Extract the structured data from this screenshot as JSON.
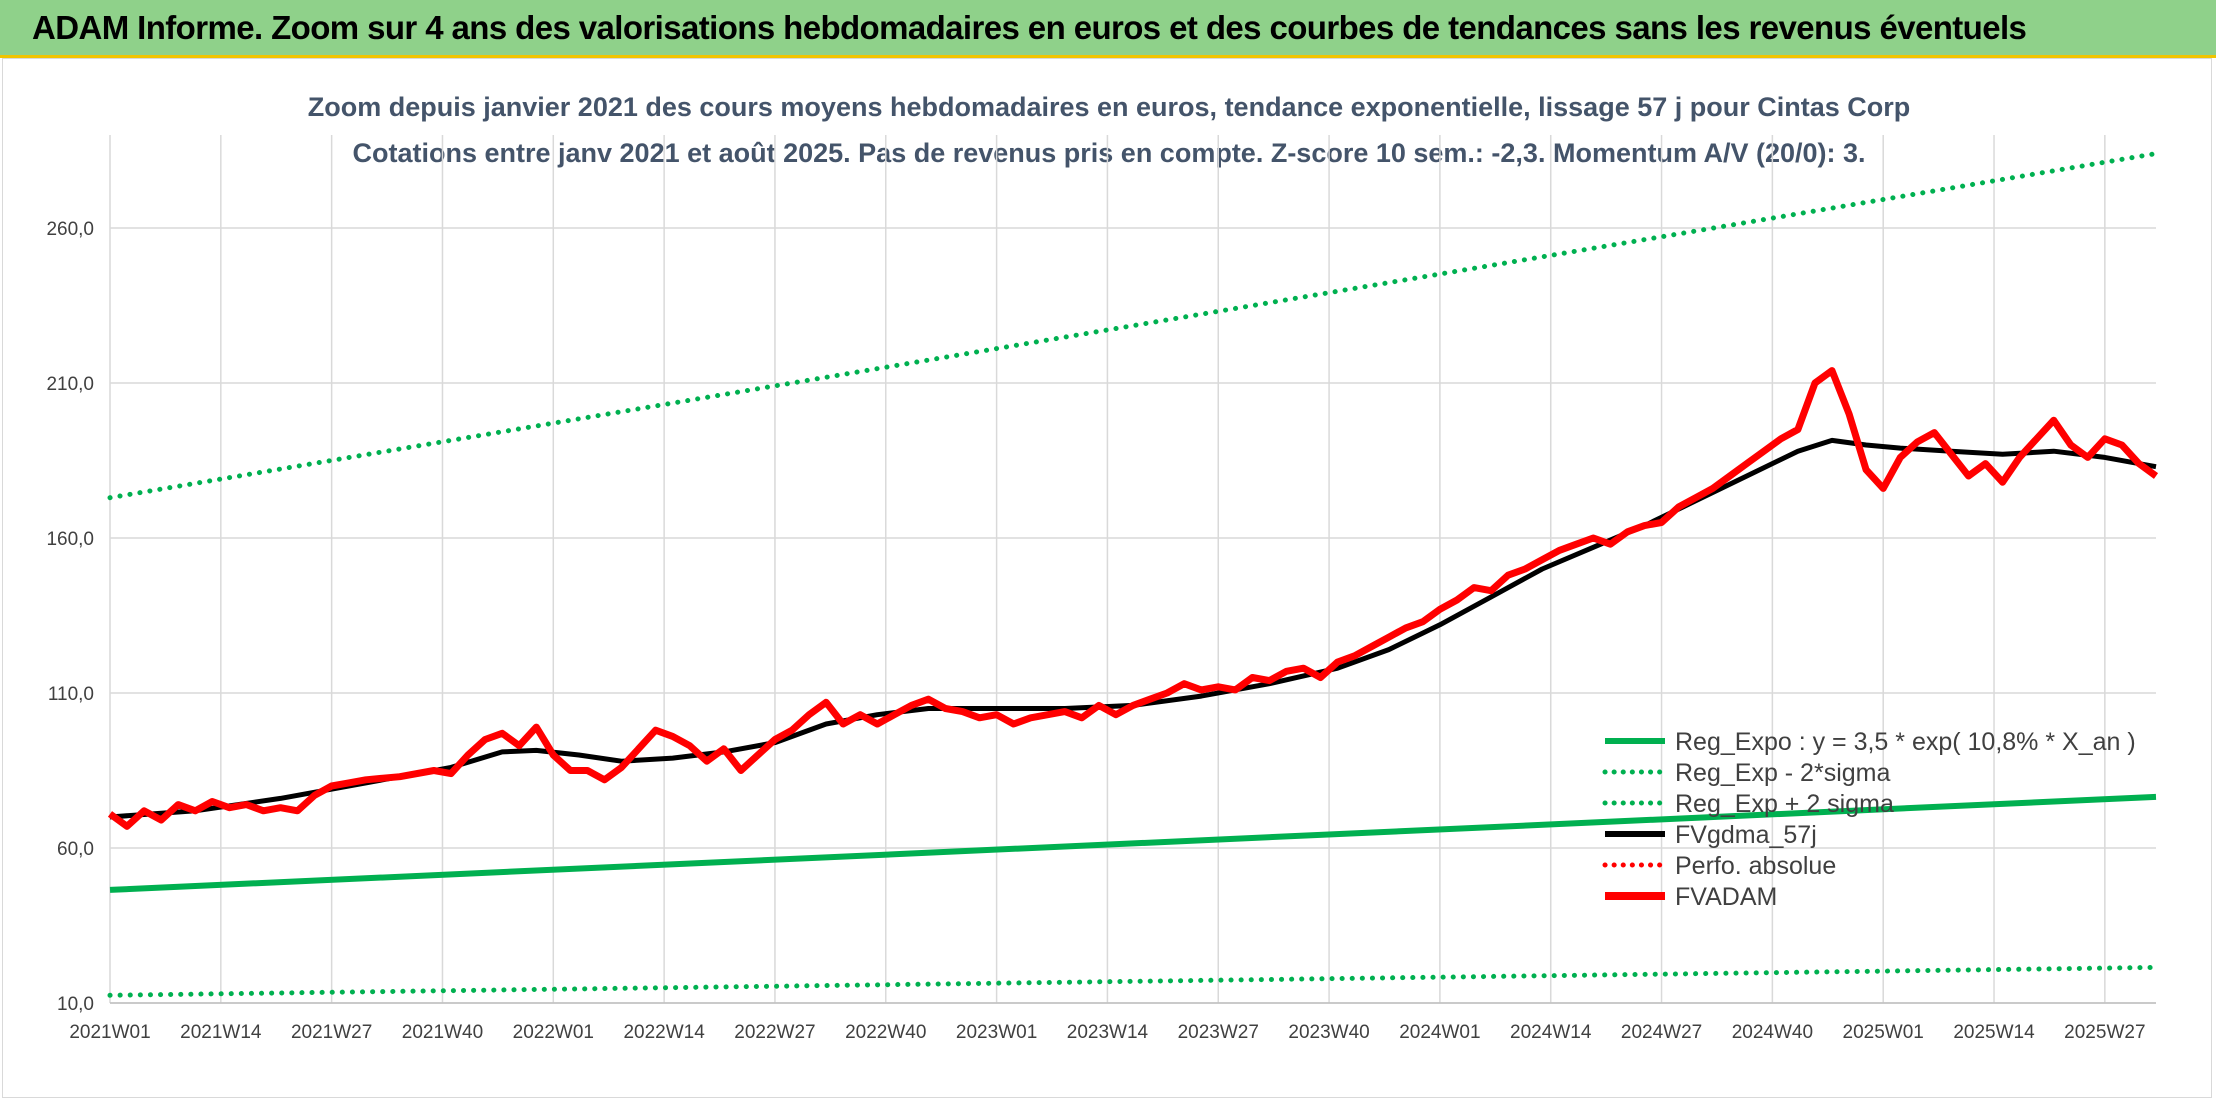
{
  "header": {
    "title": "ADAM Informe. Zoom sur 4 ans des valorisations hebdomadaires en euros et des courbes de tendances sans les revenus éventuels"
  },
  "colors": {
    "green": "#00b050",
    "black": "#000000",
    "red": "#ff0000",
    "grid": "#d9d9d9",
    "banner": "#8fd18a"
  },
  "chart_data": {
    "type": "line",
    "title_lines": [
      "Zoom depuis janvier 2021 des cours moyens hebdomadaires en euros, tendance exponentielle, lissage 57 j pour Cintas Corp",
      "Cotations entre janv 2021 et août 2025. Pas de revenus pris en compte. Z-score 10 sem.: -2,3. Momentum A/V (20/0): 3."
    ],
    "xlabel": "",
    "ylabel": "",
    "ylim": [
      10,
      290
    ],
    "yticks": [
      10,
      60,
      110,
      160,
      210,
      260
    ],
    "ytick_labels": [
      "10,0",
      "60,0",
      "110,0",
      "160,0",
      "210,0",
      "260,0"
    ],
    "x_count": 241,
    "xtick_labels": [
      "2021W01",
      "2021W14",
      "2021W27",
      "2021W40",
      "2022W01",
      "2022W14",
      "2022W27",
      "2022W40",
      "2023W01",
      "2023W14",
      "2023W27",
      "2023W40",
      "2024W01",
      "2024W14",
      "2024W27",
      "2024W40",
      "2025W01",
      "2025W14",
      "2025W27"
    ],
    "xtick_positions": [
      0,
      13,
      26,
      39,
      52,
      65,
      78,
      91,
      104,
      117,
      130,
      143,
      156,
      169,
      182,
      195,
      208,
      221,
      234
    ],
    "grid": true,
    "legend": "bottom-right",
    "legend_entries": [
      {
        "label": "Reg_Expo : y = 3,5 * exp( 10,8% *  X_an )",
        "style": "solid",
        "color": "#00b050"
      },
      {
        "label": "Reg_Exp - 2*sigma",
        "style": "dotted",
        "color": "#00b050"
      },
      {
        "label": "Reg_Exp + 2 sigma",
        "style": "dotted",
        "color": "#00b050"
      },
      {
        "label": "FVgdma_57j",
        "style": "solid",
        "color": "#000000"
      },
      {
        "label": "Perfo. absolue",
        "style": "dotted",
        "color": "#ff0000"
      },
      {
        "label": "FVADAM",
        "style": "solid",
        "color": "#ff0000"
      }
    ],
    "series": [
      {
        "name": "Reg_Expo : y = 3,5 * exp( 10,8% *  X_an )",
        "style": "solid",
        "color": "#00b050",
        "x": [
          0,
          240
        ],
        "values": [
          46.5,
          76.5
        ]
      },
      {
        "name": "Reg_Exp - 2*sigma",
        "style": "dotted",
        "color": "#00b050",
        "x": [
          0,
          240
        ],
        "values": [
          12.5,
          21.5
        ]
      },
      {
        "name": "Reg_Exp + 2 sigma",
        "style": "dotted",
        "color": "#00b050",
        "x": [
          0,
          240
        ],
        "values": [
          173,
          284
        ]
      },
      {
        "name": "FVgdma_57j",
        "style": "solid",
        "color": "#000000",
        "x": [
          0,
          10,
          20,
          30,
          40,
          46,
          50,
          55,
          60,
          66,
          72,
          78,
          84,
          90,
          96,
          104,
          112,
          120,
          128,
          136,
          144,
          150,
          156,
          162,
          168,
          174,
          180,
          186,
          192,
          198,
          202,
          206,
          210,
          216,
          222,
          228,
          234,
          240
        ],
        "values": [
          70,
          72,
          76,
          81,
          86,
          91,
          91.5,
          90,
          88,
          89,
          91,
          94,
          100,
          103,
          105,
          105,
          105,
          106,
          109,
          113,
          118,
          124,
          132,
          141,
          150,
          157,
          164,
          172,
          180,
          188,
          191.5,
          190,
          189,
          188,
          187,
          188,
          186,
          183
        ]
      },
      {
        "name": "FVADAM",
        "style": "solid",
        "color": "#ff0000",
        "x": [
          0,
          2,
          4,
          6,
          8,
          10,
          12,
          14,
          16,
          18,
          20,
          22,
          24,
          26,
          28,
          30,
          34,
          38,
          40,
          42,
          44,
          46,
          48,
          50,
          52,
          54,
          56,
          58,
          60,
          62,
          64,
          66,
          68,
          70,
          72,
          74,
          76,
          78,
          80,
          82,
          84,
          86,
          88,
          90,
          92,
          94,
          96,
          98,
          100,
          102,
          104,
          106,
          108,
          110,
          112,
          114,
          116,
          118,
          120,
          122,
          124,
          126,
          128,
          130,
          132,
          134,
          136,
          138,
          140,
          142,
          144,
          146,
          148,
          150,
          152,
          154,
          156,
          158,
          160,
          162,
          164,
          166,
          168,
          170,
          172,
          174,
          176,
          178,
          180,
          182,
          184,
          186,
          188,
          190,
          192,
          194,
          196,
          198,
          200,
          202,
          204,
          206,
          208,
          210,
          212,
          214,
          216,
          218,
          220,
          222,
          224,
          226,
          228,
          230,
          232,
          234,
          236,
          238,
          240
        ],
        "values": [
          71,
          67,
          72,
          69,
          74,
          72,
          75,
          73,
          74,
          72,
          73,
          72,
          77,
          80,
          81,
          82,
          83,
          85,
          84,
          90,
          95,
          97,
          93,
          99,
          90,
          85,
          85,
          82,
          86,
          92,
          98,
          96,
          93,
          88,
          92,
          85,
          90,
          95,
          98,
          103,
          107,
          100,
          103,
          100,
          103,
          106,
          108,
          105,
          104,
          102,
          103,
          100,
          102,
          103,
          104,
          102,
          106,
          103,
          106,
          108,
          110,
          113,
          111,
          112,
          111,
          115,
          114,
          117,
          118,
          115,
          120,
          122,
          125,
          128,
          131,
          133,
          137,
          140,
          144,
          143,
          148,
          150,
          153,
          156,
          158,
          160,
          158,
          162,
          164,
          165,
          170,
          173,
          176,
          180,
          184,
          188,
          192,
          195,
          210,
          214,
          200,
          182,
          176,
          186,
          191,
          194,
          187,
          180,
          184,
          178,
          186,
          192,
          198,
          190,
          186,
          192,
          190,
          184,
          180
        ]
      }
    ]
  }
}
